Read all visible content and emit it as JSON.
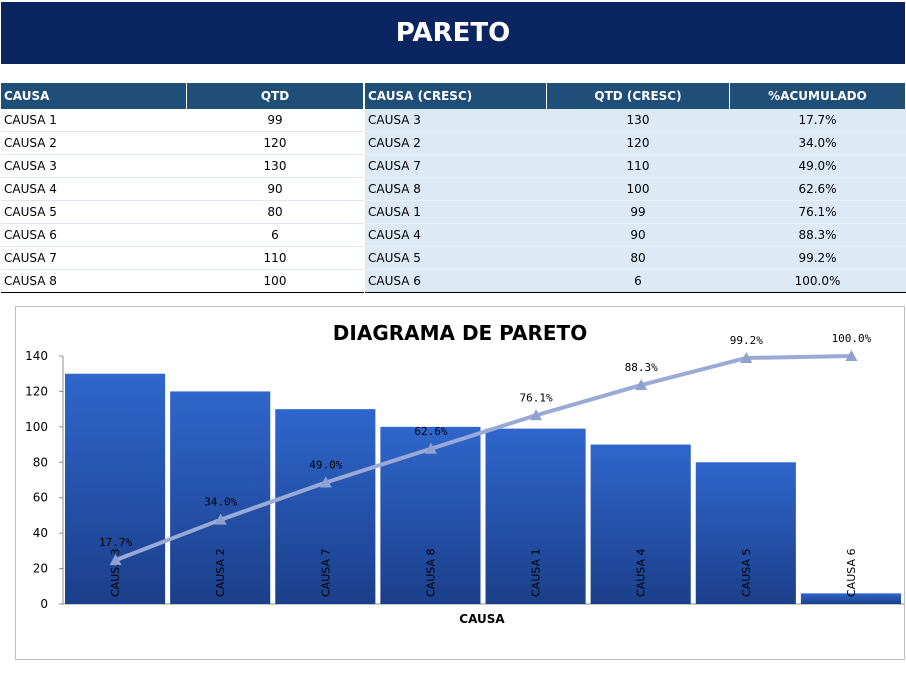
{
  "header": {
    "title": "PARETO"
  },
  "table_left": {
    "headers": [
      "CAUSA",
      "QTD"
    ],
    "rows": [
      [
        "CAUSA 1",
        "99"
      ],
      [
        "CAUSA 2",
        "120"
      ],
      [
        "CAUSA 3",
        "130"
      ],
      [
        "CAUSA 4",
        "90"
      ],
      [
        "CAUSA 5",
        "80"
      ],
      [
        "CAUSA 6",
        "6"
      ],
      [
        "CAUSA 7",
        "110"
      ],
      [
        "CAUSA 8",
        "100"
      ]
    ]
  },
  "table_right": {
    "headers": [
      "CAUSA (CRESC)",
      "QTD (CRESC)",
      "%ACUMULADO"
    ],
    "rows": [
      [
        "CAUSA 3",
        "130",
        "17.7%"
      ],
      [
        "CAUSA 2",
        "120",
        "34.0%"
      ],
      [
        "CAUSA 7",
        "110",
        "49.0%"
      ],
      [
        "CAUSA 8",
        "100",
        "62.6%"
      ],
      [
        "CAUSA 1",
        "99",
        "76.1%"
      ],
      [
        "CAUSA 4",
        "90",
        "88.3%"
      ],
      [
        "CAUSA 5",
        "80",
        "99.2%"
      ],
      [
        "CAUSA 6",
        "6",
        "100.0%"
      ]
    ]
  },
  "chart_data": {
    "type": "bar",
    "title": "DIAGRAMA DE PARETO",
    "xlabel": "CAUSA",
    "ylabel": "",
    "categories": [
      "CAUSA 3",
      "CAUSA 2",
      "CAUSA 7",
      "CAUSA 8",
      "CAUSA 1",
      "CAUSA 4",
      "CAUSA 5",
      "CAUSA 6"
    ],
    "values": [
      130,
      120,
      110,
      100,
      99,
      90,
      80,
      6
    ],
    "cumulative_percent": [
      17.7,
      34.0,
      49.0,
      62.6,
      76.1,
      88.3,
      99.2,
      100.0
    ],
    "cumulative_labels": [
      "17.7%",
      "34.0%",
      "49.0%",
      "62.6%",
      "76.1%",
      "88.3%",
      "99.2%",
      "100.0%"
    ],
    "ylim": [
      0,
      140
    ],
    "yticks": [
      "0",
      "20",
      "40",
      "60",
      "80",
      "100",
      "120",
      "140"
    ],
    "secondary_axis": "hidden",
    "line_marker": "triangle",
    "grid": false,
    "colors": {
      "bar_top": "#2f66cc",
      "bar_bottom": "#1b3f8a",
      "line": "#9aaad6",
      "marker": "#8fa2cf",
      "banner": "#0b2561",
      "table_header": "#1f4e79"
    }
  }
}
